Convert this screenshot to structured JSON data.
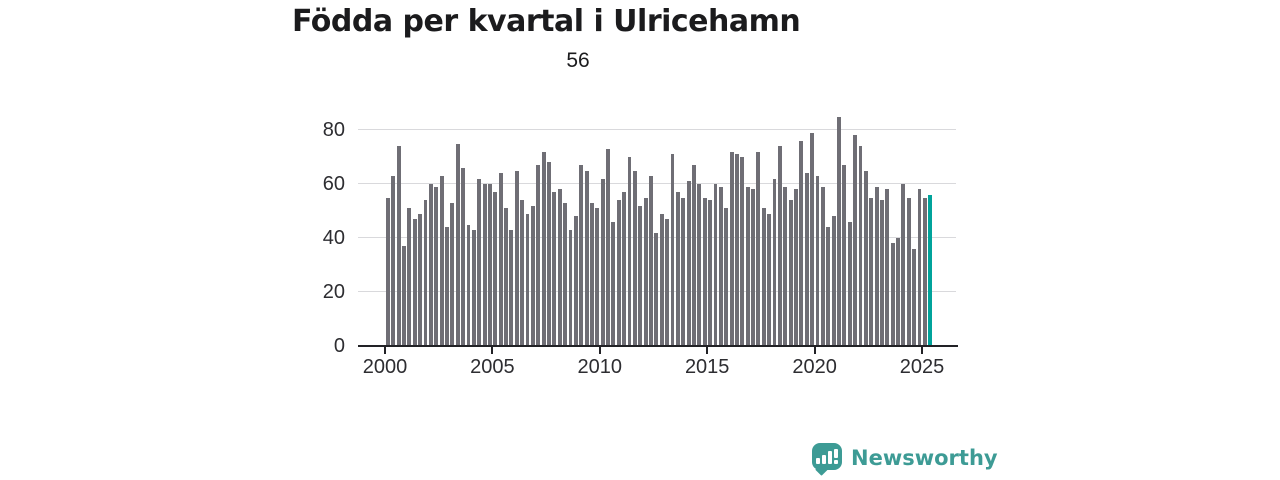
{
  "title": "Födda per kvartal i Ulricehamn",
  "chart_data": {
    "type": "bar",
    "title": "Födda per kvartal i Ulricehamn",
    "xlabel": "",
    "ylabel": "",
    "x_start_year": 2000,
    "period": "quarterly",
    "x_tick_years": [
      2000,
      2005,
      2010,
      2015,
      2020,
      2025
    ],
    "y_ticks": [
      0,
      20,
      40,
      60,
      80
    ],
    "ylim": [
      0,
      87
    ],
    "grid": "horizontal",
    "legend": "none",
    "values": [
      55,
      63,
      74,
      37,
      51,
      47,
      49,
      54,
      60,
      59,
      63,
      44,
      53,
      75,
      66,
      45,
      43,
      62,
      60,
      60,
      57,
      64,
      51,
      43,
      65,
      54,
      49,
      52,
      67,
      72,
      68,
      57,
      58,
      53,
      43,
      48,
      67,
      65,
      53,
      51,
      62,
      73,
      46,
      54,
      57,
      70,
      65,
      52,
      55,
      63,
      42,
      49,
      47,
      71,
      57,
      55,
      61,
      67,
      60,
      55,
      54,
      60,
      59,
      51,
      72,
      71,
      70,
      59,
      58,
      72,
      51,
      49,
      62,
      74,
      59,
      54,
      58,
      76,
      64,
      79,
      63,
      59,
      44,
      48,
      85,
      67,
      46,
      78,
      74,
      65,
      55,
      59,
      54,
      58,
      38,
      40,
      60,
      55,
      36,
      58,
      55,
      56
    ],
    "highlight_index": 101,
    "highlight_label": "56",
    "bar_color": "#6f6e75",
    "highlight_color": "#00a39b"
  },
  "branding": {
    "logo_text": "Newsworthy",
    "logo_icon": "bar-chart-speech-bubble-icon",
    "brand_color": "#3d9b95"
  }
}
